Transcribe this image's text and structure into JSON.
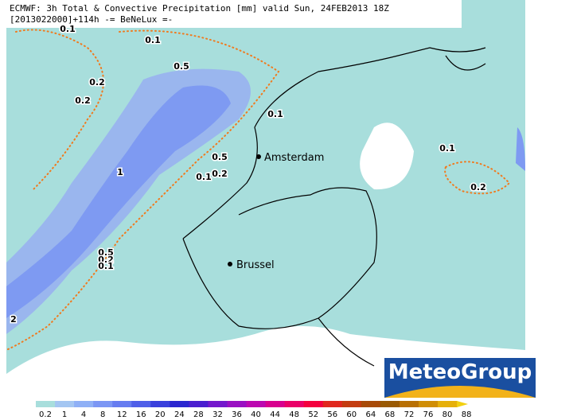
{
  "header": {
    "line1": "ECMWF: 3h Total & Convective Precipitation [mm] valid Sun, 24FEB2013 18Z",
    "line2": "[2013022000]+114h  -= BeNeLux =-"
  },
  "contour_labels": [
    "0.1",
    "0.1",
    "0.5",
    "0.2",
    "0.2",
    "0.1",
    "0.5",
    "0.1",
    "0.2",
    "1",
    "0.1",
    "0.2",
    "0.5",
    "0.2",
    "0.1",
    "2"
  ],
  "cities": [
    "Amsterdam",
    "Brussel"
  ],
  "logo": "MeteoGroup",
  "legend": {
    "labels": [
      "0.2",
      "1",
      "4",
      "8",
      "12",
      "16",
      "20",
      "24",
      "28",
      "32",
      "36",
      "40",
      "44",
      "48",
      "52",
      "56",
      "60",
      "64",
      "68",
      "72",
      "76",
      "80",
      "88"
    ],
    "colors": [
      "#a8dedc",
      "#a4c6f2",
      "#8fb0f6",
      "#7b96f4",
      "#667cf0",
      "#4f5fe8",
      "#3a40dc",
      "#2a26cf",
      "#4a1ecf",
      "#7418cc",
      "#9a10c2",
      "#bc08b0",
      "#d8008e",
      "#ea0068",
      "#f4003e",
      "#e0281e",
      "#c43c10",
      "#a84a08",
      "#9a5a04",
      "#b87004",
      "#d08e06",
      "#e6b00a",
      "#f2d010"
    ]
  }
}
